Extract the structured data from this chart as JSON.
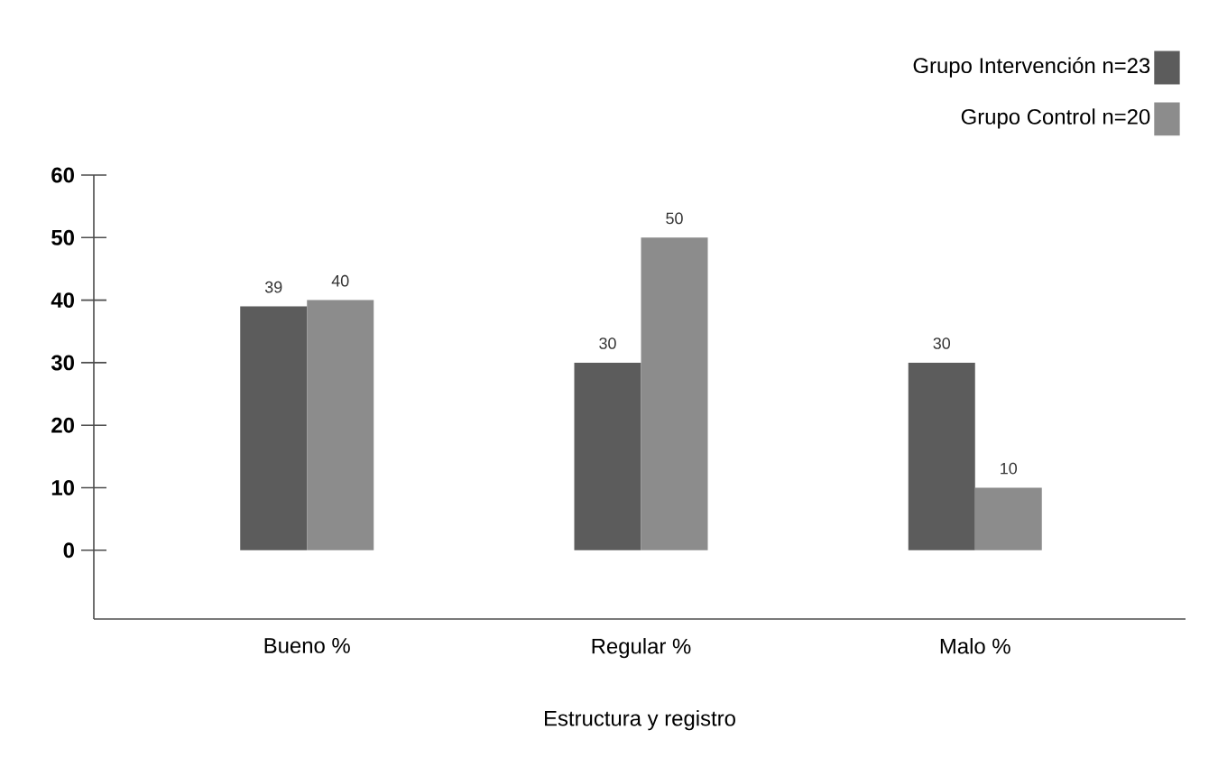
{
  "chart_data": {
    "type": "bar",
    "xlabel": "Estructura y registro",
    "categories": [
      "Bueno %",
      "Regular %",
      "Malo %"
    ],
    "series": [
      {
        "name": "Grupo Intervención n=23",
        "color": "#5c5c5c",
        "values": [
          39,
          30,
          30
        ]
      },
      {
        "name": "Grupo Control n=20",
        "color": "#8c8c8c",
        "values": [
          40,
          50,
          10
        ]
      }
    ],
    "ylim": [
      -11,
      60
    ],
    "yticks": [
      0,
      10,
      20,
      30,
      40,
      50,
      60
    ],
    "grid": false,
    "legend": "top right",
    "data_labels": true
  }
}
